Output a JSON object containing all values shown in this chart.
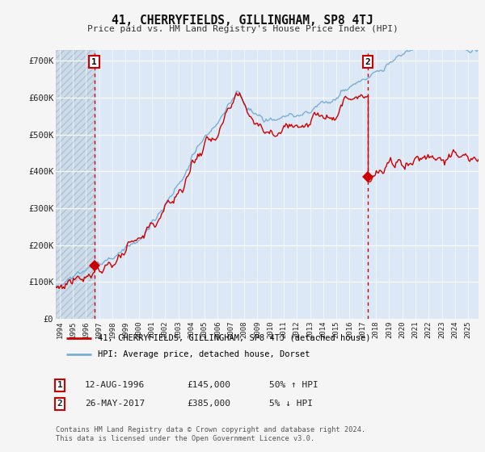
{
  "title": "41, CHERRYFIELDS, GILLINGHAM, SP8 4TJ",
  "subtitle": "Price paid vs. HM Land Registry's House Price Index (HPI)",
  "ylabel_ticks": [
    "£0",
    "£100K",
    "£200K",
    "£300K",
    "£400K",
    "£500K",
    "£600K",
    "£700K"
  ],
  "ytick_values": [
    0,
    100000,
    200000,
    300000,
    400000,
    500000,
    600000,
    700000
  ],
  "ylim": [
    0,
    730000
  ],
  "xlim_start": 1993.7,
  "xlim_end": 2025.8,
  "line1_color": "#cc0000",
  "line2_color": "#7aafd4",
  "plot_bg": "#dce8f5",
  "hatch_color": "#c8d8e8",
  "sale1_x": 1996.616,
  "sale1_y": 145000,
  "sale2_x": 2017.38,
  "sale2_y": 385000,
  "legend_line1": "41, CHERRYFIELDS, GILLINGHAM, SP8 4TJ (detached house)",
  "legend_line2": "HPI: Average price, detached house, Dorset",
  "table_row1": [
    "1",
    "12-AUG-1996",
    "£145,000",
    "50% ↑ HPI"
  ],
  "table_row2": [
    "2",
    "26-MAY-2017",
    "£385,000",
    "5% ↓ HPI"
  ],
  "footnote": "Contains HM Land Registry data © Crown copyright and database right 2024.\nThis data is licensed under the Open Government Licence v3.0.",
  "xtick_years": [
    1994,
    1995,
    1996,
    1997,
    1998,
    1999,
    2000,
    2001,
    2002,
    2003,
    2004,
    2005,
    2006,
    2007,
    2008,
    2009,
    2010,
    2011,
    2012,
    2013,
    2014,
    2015,
    2016,
    2017,
    2018,
    2019,
    2020,
    2021,
    2022,
    2023,
    2024,
    2025
  ]
}
